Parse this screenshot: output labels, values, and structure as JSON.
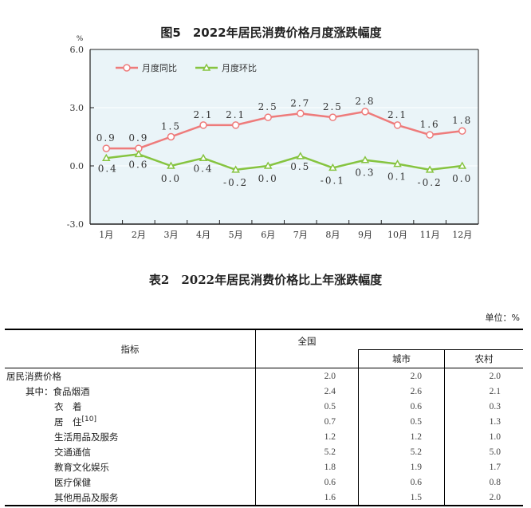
{
  "chart_data": {
    "type": "line",
    "title": "图5　2022年居民消费价格月度涨跌幅度",
    "ylabel": "%",
    "ylim": [
      -3.0,
      6.0
    ],
    "yticks": [
      "6.0",
      "3.0",
      "0.0",
      "-3.0"
    ],
    "categories": [
      "1月",
      "2月",
      "3月",
      "4月",
      "5月",
      "6月",
      "7月",
      "8月",
      "9月",
      "10月",
      "11月",
      "12月"
    ],
    "legend_position": "top-left",
    "series": [
      {
        "name": "月度同比",
        "color": "#ee7b7b",
        "marker": "circle",
        "values": [
          0.9,
          0.9,
          1.5,
          2.1,
          2.1,
          2.5,
          2.7,
          2.5,
          2.8,
          2.1,
          1.6,
          1.8
        ],
        "labels": [
          "0.9",
          "0.9",
          "1.5",
          "2.1",
          "2.1",
          "2.5",
          "2.7",
          "2.5",
          "2.8",
          "2.1",
          "1.6",
          "1.8"
        ]
      },
      {
        "name": "月度环比",
        "color": "#86c440",
        "marker": "triangle",
        "values": [
          0.4,
          0.6,
          0.0,
          0.4,
          -0.2,
          0.0,
          0.5,
          -0.1,
          0.3,
          0.1,
          -0.2,
          0.0
        ],
        "labels": [
          "0.4",
          "0.6",
          "0.0",
          "0.4",
          "-0.2",
          "0.0",
          "0.5",
          "-0.1",
          "0.3",
          "0.1",
          "-0.2",
          "0.0"
        ]
      }
    ],
    "background": "#eaf4f8"
  },
  "table": {
    "title": "表2　2022年居民消费价格比上年涨跌幅度",
    "unit": "单位：%",
    "headers": {
      "indicator": "指标",
      "national": "全国",
      "urban": "城市",
      "rural": "农村"
    },
    "rows": [
      {
        "name": "居民消费价格",
        "indent": 0,
        "values": [
          "2.0",
          "2.0",
          "2.0"
        ]
      },
      {
        "name": "其中：食品烟酒",
        "indent": 1,
        "values": [
          "2.4",
          "2.6",
          "2.1"
        ]
      },
      {
        "name": "衣　着",
        "indent": 2,
        "values": [
          "0.5",
          "0.6",
          "0.3"
        ]
      },
      {
        "name": "居　住",
        "sup": "[10]",
        "indent": 2,
        "values": [
          "0.7",
          "0.5",
          "1.3"
        ]
      },
      {
        "name": "生活用品及服务",
        "indent": 2,
        "values": [
          "1.2",
          "1.2",
          "1.0"
        ]
      },
      {
        "name": "交通通信",
        "indent": 2,
        "values": [
          "5.2",
          "5.2",
          "5.0"
        ]
      },
      {
        "name": "教育文化娱乐",
        "indent": 2,
        "values": [
          "1.8",
          "1.9",
          "1.7"
        ]
      },
      {
        "name": "医疗保健",
        "indent": 2,
        "values": [
          "0.6",
          "0.6",
          "0.8"
        ]
      },
      {
        "name": "其他用品及服务",
        "indent": 2,
        "values": [
          "1.6",
          "1.5",
          "2.0"
        ]
      }
    ]
  }
}
